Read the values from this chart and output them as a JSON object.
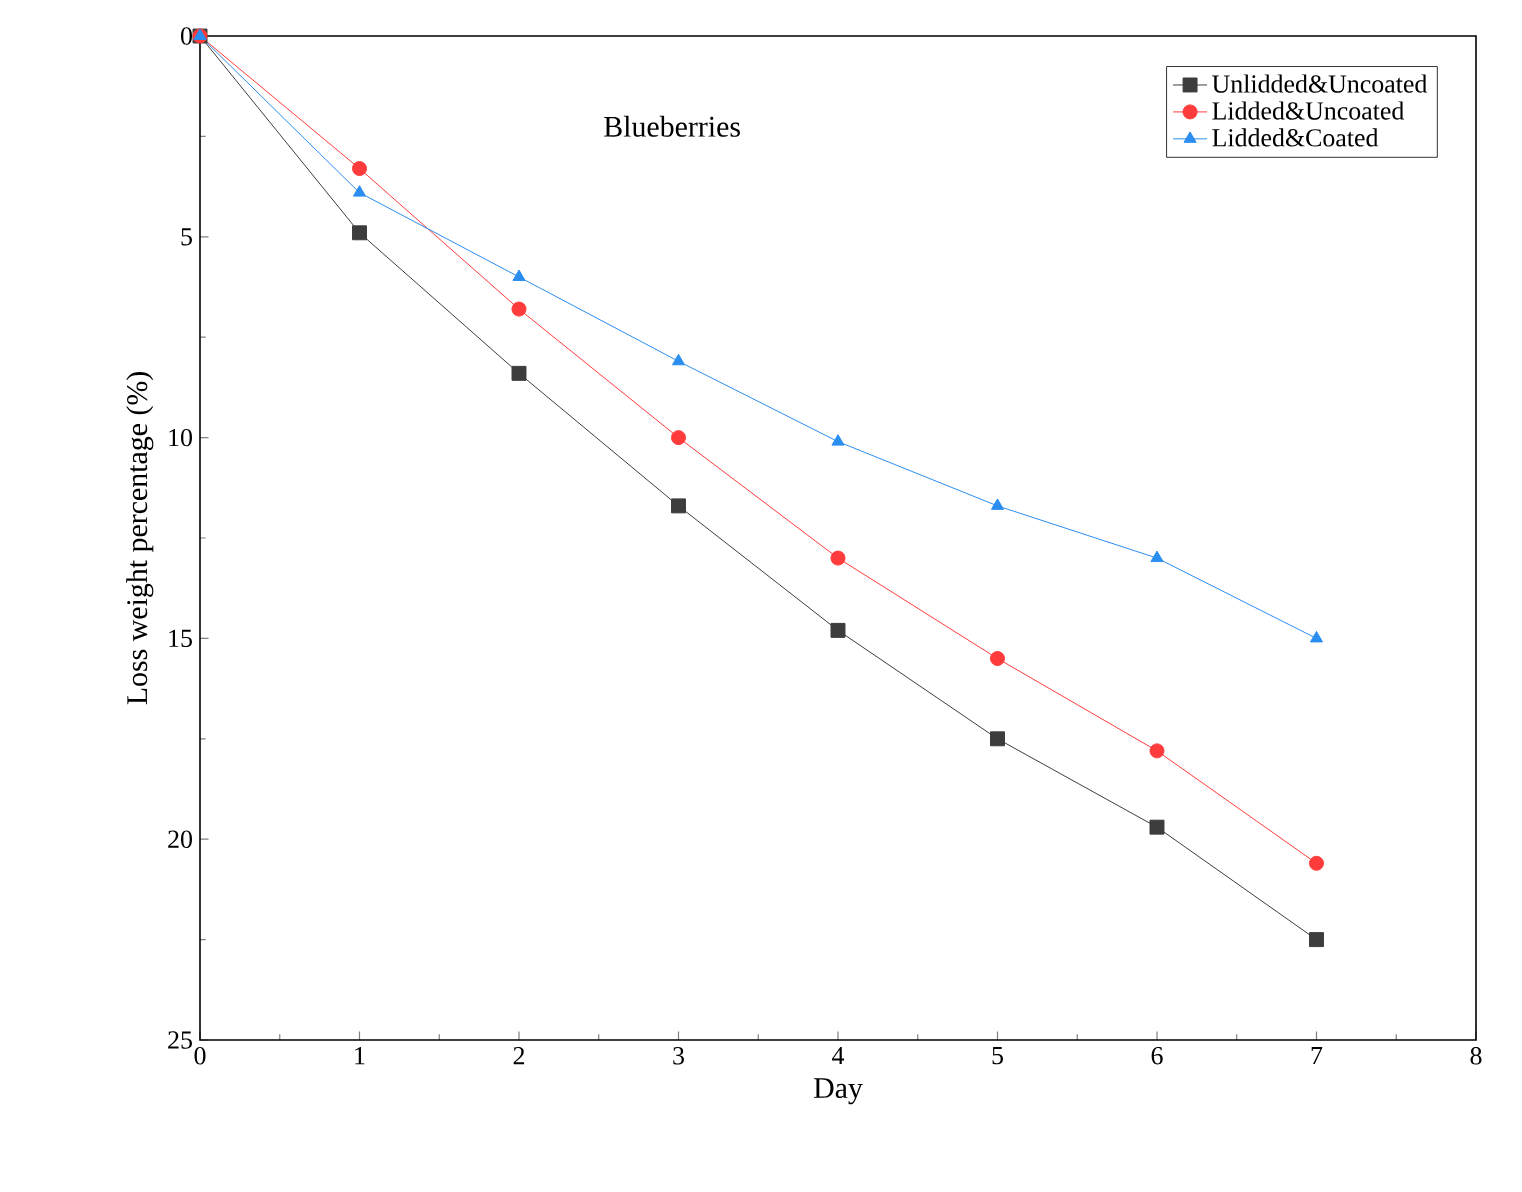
{
  "chart_data": {
    "type": "line",
    "xlabel": "Day",
    "ylabel": "Loss weight percentage (%)",
    "annotations": [
      "Blueberries"
    ],
    "x": [
      0,
      1,
      2,
      3,
      4,
      5,
      6,
      7
    ],
    "series": [
      {
        "name": "Unlidded&Uncoated",
        "color": "#3d3d3d",
        "marker": "square",
        "values": [
          0,
          4.9,
          8.4,
          11.7,
          14.8,
          17.5,
          19.7,
          22.5
        ]
      },
      {
        "name": "Lidded&Uncoated",
        "color": "#ff3b3b",
        "marker": "circle",
        "values": [
          0,
          3.3,
          6.8,
          10.0,
          13.0,
          15.5,
          17.8,
          20.6
        ]
      },
      {
        "name": "Lidded&Coated",
        "color": "#2a8ef0",
        "marker": "triangle",
        "values": [
          0,
          3.9,
          6.0,
          8.1,
          10.1,
          11.7,
          13.0,
          15.0
        ]
      }
    ],
    "xlim": [
      0,
      8
    ],
    "xticks": [
      0,
      1,
      2,
      3,
      4,
      5,
      6,
      7,
      8
    ],
    "ylim": [
      25,
      0
    ],
    "yticks": [
      0,
      5,
      10,
      15,
      20,
      25
    ],
    "legend": "top right"
  }
}
